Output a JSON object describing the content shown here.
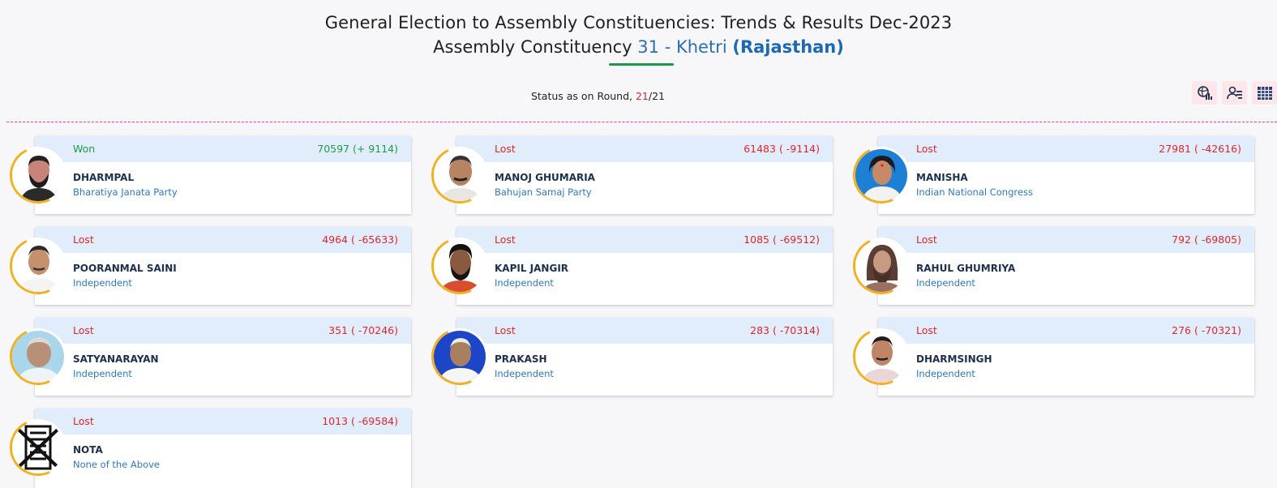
{
  "header": {
    "title_line1": "General Election to Assembly Constituencies: Trends & Results Dec-2023",
    "title_prefix": "Assembly Constituency",
    "constituency": "31 - Khetri",
    "state": "(Rajasthan)"
  },
  "status": {
    "label": "Status as on Round,",
    "current_round": "21",
    "separator": "/",
    "total_rounds": "21"
  },
  "toolbar": {
    "icons": [
      "map-chart-icon",
      "candidate-list-icon",
      "table-grid-icon"
    ]
  },
  "colors": {
    "won": "#1f9a48",
    "lost": "#e0262d",
    "accent_blue": "#1b68b5",
    "ring": "#f3b01a",
    "header_band": "#e2edfb"
  },
  "candidates": [
    {
      "status": "Won",
      "votes": "70597 (+ 9114)",
      "name": "DHARMPAL",
      "party": "Bharatiya Janata Party"
    },
    {
      "status": "Lost",
      "votes": "61483 ( -9114)",
      "name": "MANOJ GHUMARIA",
      "party": "Bahujan Samaj Party"
    },
    {
      "status": "Lost",
      "votes": "27981 ( -42616)",
      "name": "MANISHA",
      "party": "Indian National Congress"
    },
    {
      "status": "Lost",
      "votes": "4964 ( -65633)",
      "name": "POORANMAL SAINI",
      "party": "Independent"
    },
    {
      "status": "Lost",
      "votes": "1085 ( -69512)",
      "name": "KAPIL JANGIR",
      "party": "Independent"
    },
    {
      "status": "Lost",
      "votes": "792 ( -69805)",
      "name": "RAHUL GHUMRIYA",
      "party": "Independent"
    },
    {
      "status": "Lost",
      "votes": "351 ( -70246)",
      "name": "SATYANARAYAN",
      "party": "Independent"
    },
    {
      "status": "Lost",
      "votes": "283 ( -70314)",
      "name": "PRAKASH",
      "party": "Independent"
    },
    {
      "status": "Lost",
      "votes": "276 ( -70321)",
      "name": "DHARMSINGH",
      "party": "Independent"
    },
    {
      "status": "Lost",
      "votes": "1013 ( -69584)",
      "name": "NOTA",
      "party": "None of the Above"
    }
  ]
}
